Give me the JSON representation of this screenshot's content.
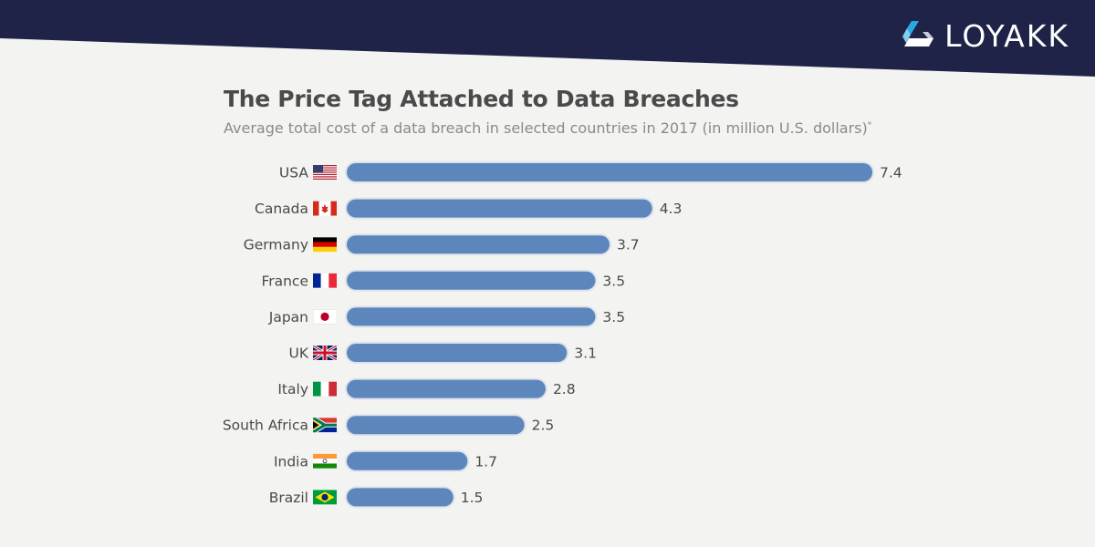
{
  "brand": {
    "name": "LOYAKK",
    "banner_color": "#1e2347",
    "accent_color": "#2ba8e0"
  },
  "chart_data": {
    "type": "bar",
    "orientation": "horizontal",
    "title": "The Price Tag Attached to Data Breaches",
    "subtitle": "Average total cost of a data breach in selected countries in 2017 (in million U.S. dollars)",
    "subtitle_mark": "*",
    "categories": [
      "USA",
      "Canada",
      "Germany",
      "France",
      "Japan",
      "UK",
      "Italy",
      "South Africa",
      "India",
      "Brazil"
    ],
    "values": [
      7.4,
      4.3,
      3.7,
      3.5,
      3.5,
      3.1,
      2.8,
      2.5,
      1.7,
      1.5
    ],
    "value_labels": [
      "7.4",
      "4.3",
      "3.7",
      "3.5",
      "3.5",
      "3.1",
      "2.8",
      "2.5",
      "1.7",
      "1.5"
    ],
    "flags": [
      "usa-flag-icon",
      "canada-flag-icon",
      "germany-flag-icon",
      "france-flag-icon",
      "japan-flag-icon",
      "uk-flag-icon",
      "italy-flag-icon",
      "south-africa-flag-icon",
      "india-flag-icon",
      "brazil-flag-icon"
    ],
    "bar_color": "#5d86bd",
    "xlim": [
      0,
      7.4
    ],
    "grid": false,
    "legend": "none"
  }
}
